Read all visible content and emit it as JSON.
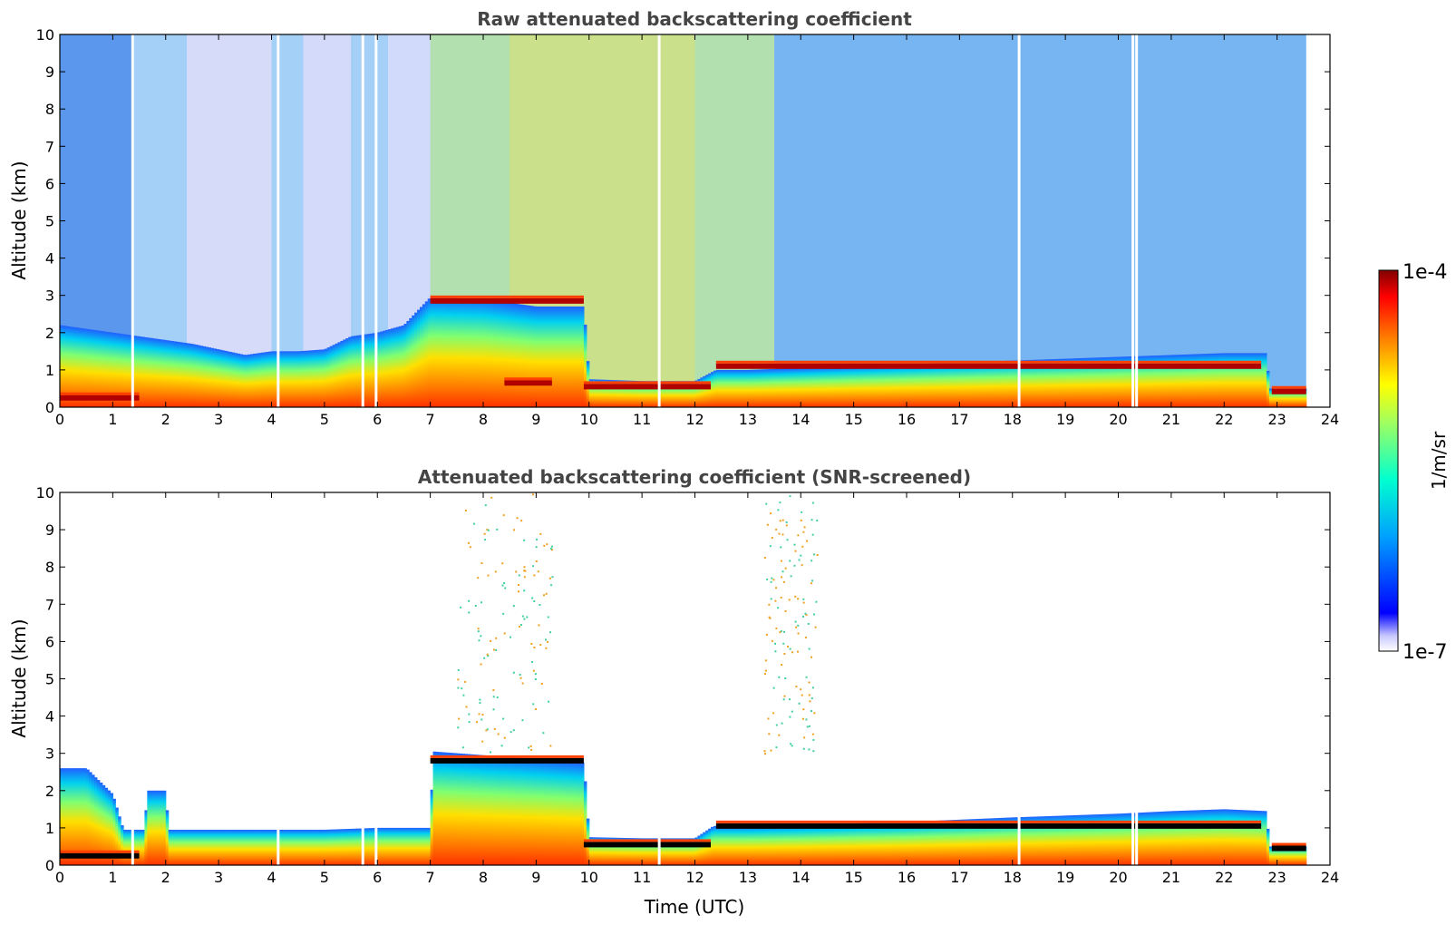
{
  "chart_data": [
    {
      "type": "heatmap",
      "title": "Raw attenuated backscattering coefficient",
      "xlabel": "",
      "ylabel": "Altitude (km)",
      "xlim": [
        0,
        24
      ],
      "ylim": [
        0,
        10
      ],
      "x_ticks": [
        "0",
        "1",
        "2",
        "3",
        "4",
        "5",
        "6",
        "7",
        "8",
        "9",
        "10",
        "11",
        "12",
        "13",
        "14",
        "15",
        "16",
        "17",
        "18",
        "19",
        "20",
        "21",
        "22",
        "23",
        "24"
      ],
      "y_ticks": [
        "0",
        "1",
        "2",
        "3",
        "4",
        "5",
        "6",
        "7",
        "8",
        "9",
        "10"
      ],
      "data_end_time": 23.55,
      "variant": "raw",
      "boundary_layer_top_km": [
        [
          0,
          2.2
        ],
        [
          0.5,
          2.1
        ],
        [
          1,
          2.0
        ],
        [
          1.5,
          1.9
        ],
        [
          2,
          1.8
        ],
        [
          2.5,
          1.7
        ],
        [
          3,
          1.55
        ],
        [
          3.5,
          1.4
        ],
        [
          4,
          1.5
        ],
        [
          4.5,
          1.5
        ],
        [
          5,
          1.55
        ],
        [
          5.5,
          1.9
        ],
        [
          6,
          2.0
        ],
        [
          6.5,
          2.2
        ],
        [
          7,
          2.95
        ],
        [
          8,
          2.9
        ],
        [
          9,
          2.7
        ],
        [
          9.9,
          2.7
        ],
        [
          10,
          0.75
        ],
        [
          11,
          0.7
        ],
        [
          12,
          0.7
        ],
        [
          12.4,
          1.0
        ],
        [
          13,
          1.0
        ],
        [
          14,
          1.05
        ],
        [
          15,
          1.1
        ],
        [
          16,
          1.15
        ],
        [
          17,
          1.2
        ],
        [
          18,
          1.25
        ],
        [
          19,
          1.3
        ],
        [
          20,
          1.35
        ],
        [
          21,
          1.4
        ],
        [
          22,
          1.45
        ],
        [
          22.8,
          1.45
        ],
        [
          22.85,
          0.5
        ],
        [
          23.55,
          0.5
        ]
      ],
      "cloud_layers": [
        {
          "t0": 0.0,
          "t1": 1.5,
          "alt_km": 0.25
        },
        {
          "t0": 7.0,
          "t1": 9.9,
          "alt_km": 2.85
        },
        {
          "t0": 8.4,
          "t1": 9.3,
          "alt_km": 0.65
        },
        {
          "t0": 9.9,
          "t1": 12.3,
          "alt_km": 0.55
        },
        {
          "t0": 12.4,
          "t1": 22.7,
          "alt_km": 1.1
        },
        {
          "t0": 22.9,
          "t1": 23.55,
          "alt_km": 0.42
        }
      ]
    },
    {
      "type": "heatmap",
      "title": "Attenuated backscattering coefficient (SNR-screened)",
      "xlabel": "Time (UTC)",
      "ylabel": "Altitude (km)",
      "xlim": [
        0,
        24
      ],
      "ylim": [
        0,
        10
      ],
      "x_ticks": [
        "0",
        "1",
        "2",
        "3",
        "4",
        "5",
        "6",
        "7",
        "8",
        "9",
        "10",
        "11",
        "12",
        "13",
        "14",
        "15",
        "16",
        "17",
        "18",
        "19",
        "20",
        "21",
        "22",
        "23",
        "24"
      ],
      "y_ticks": [
        "0",
        "1",
        "2",
        "3",
        "4",
        "5",
        "6",
        "7",
        "8",
        "9",
        "10"
      ],
      "data_end_time": 23.55,
      "variant": "screened",
      "boundary_layer_top_km": [
        [
          0,
          2.6
        ],
        [
          0.5,
          2.6
        ],
        [
          1.0,
          1.9
        ],
        [
          1.2,
          0.95
        ],
        [
          1.6,
          0.95
        ],
        [
          1.65,
          2.0
        ],
        [
          2.0,
          2.0
        ],
        [
          2.05,
          0.95
        ],
        [
          3,
          0.95
        ],
        [
          4,
          0.95
        ],
        [
          5,
          0.95
        ],
        [
          6,
          1.0
        ],
        [
          7,
          1.0
        ],
        [
          7.05,
          3.05
        ],
        [
          8,
          2.95
        ],
        [
          9,
          2.85
        ],
        [
          9.9,
          2.75
        ],
        [
          10,
          0.75
        ],
        [
          11,
          0.72
        ],
        [
          12,
          0.72
        ],
        [
          12.35,
          1.05
        ],
        [
          13,
          1.05
        ],
        [
          14,
          1.08
        ],
        [
          15,
          1.12
        ],
        [
          16,
          1.16
        ],
        [
          17,
          1.22
        ],
        [
          18,
          1.28
        ],
        [
          19,
          1.33
        ],
        [
          20,
          1.38
        ],
        [
          21,
          1.45
        ],
        [
          22,
          1.5
        ],
        [
          22.8,
          1.45
        ],
        [
          22.85,
          0.5
        ],
        [
          23.55,
          0.5
        ]
      ],
      "cloud_layers": [
        {
          "t0": 0.0,
          "t1": 1.5,
          "alt_km": 0.25
        },
        {
          "t0": 7.0,
          "t1": 9.9,
          "alt_km": 2.8
        },
        {
          "t0": 9.9,
          "t1": 12.3,
          "alt_km": 0.55
        },
        {
          "t0": 12.4,
          "t1": 22.7,
          "alt_km": 1.05
        },
        {
          "t0": 22.9,
          "t1": 23.55,
          "alt_km": 0.45
        }
      ]
    }
  ],
  "colorbar": {
    "label": "1/m/sr",
    "max_label": "1e-4",
    "min_label": "1e-7",
    "scale": "log",
    "range": [
      1e-07,
      0.0001
    ],
    "colormap": "jet",
    "stops": [
      "#ffffff",
      "#0000ff",
      "#00a0ff",
      "#00ffe0",
      "#a0ff60",
      "#ffff00",
      "#ff8000",
      "#ff0000",
      "#800000"
    ]
  }
}
